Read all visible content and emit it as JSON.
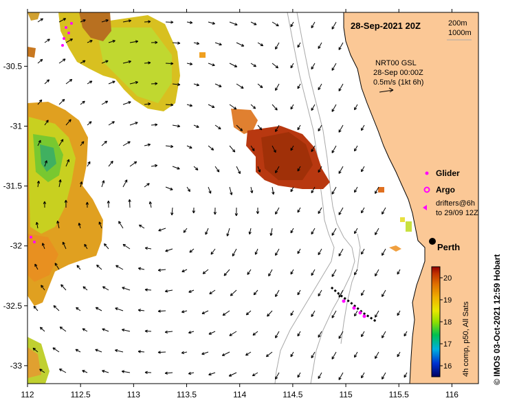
{
  "title": "28-Sep-2021 20Z",
  "isobaths": [
    "200m",
    "1000m"
  ],
  "current_source": {
    "name": "NRT00 GSL",
    "time": "28-Sep 00:00Z",
    "scale": "0.5m/s (1kt 6h)"
  },
  "legend": {
    "glider": "Glider",
    "argo": "Argo",
    "drifters_line1": "drifters@6h",
    "drifters_line2": "to 29/09 12Z"
  },
  "city": "Perth",
  "colorbar": {
    "label": "4h comp, p50, All Sats",
    "ticks": [
      "16",
      "17",
      "18",
      "19",
      "20"
    ],
    "min": 15.5,
    "max": 20.5
  },
  "credit": "© IMOS 03-Oct-2021 12:59 Hobart",
  "axes": {
    "x_ticks": [
      "112",
      "112.5",
      "113",
      "113.5",
      "114",
      "114.5",
      "115",
      "115.5",
      "116"
    ],
    "y_ticks": [
      "-30.5",
      "-31",
      "-31.5",
      "-32",
      "-32.5",
      "-33"
    ],
    "xlim": [
      112,
      116.25
    ],
    "ylim": [
      -33.15,
      -30.05
    ]
  },
  "colors": {
    "land": "#fbc896",
    "coast": "#000000",
    "isobath": "#a8a8a8",
    "glider": "#ff00ff",
    "drifter": "#000000",
    "scale_200": "#a8a8a8",
    "scale_1000": "#a8a8a8"
  }
}
